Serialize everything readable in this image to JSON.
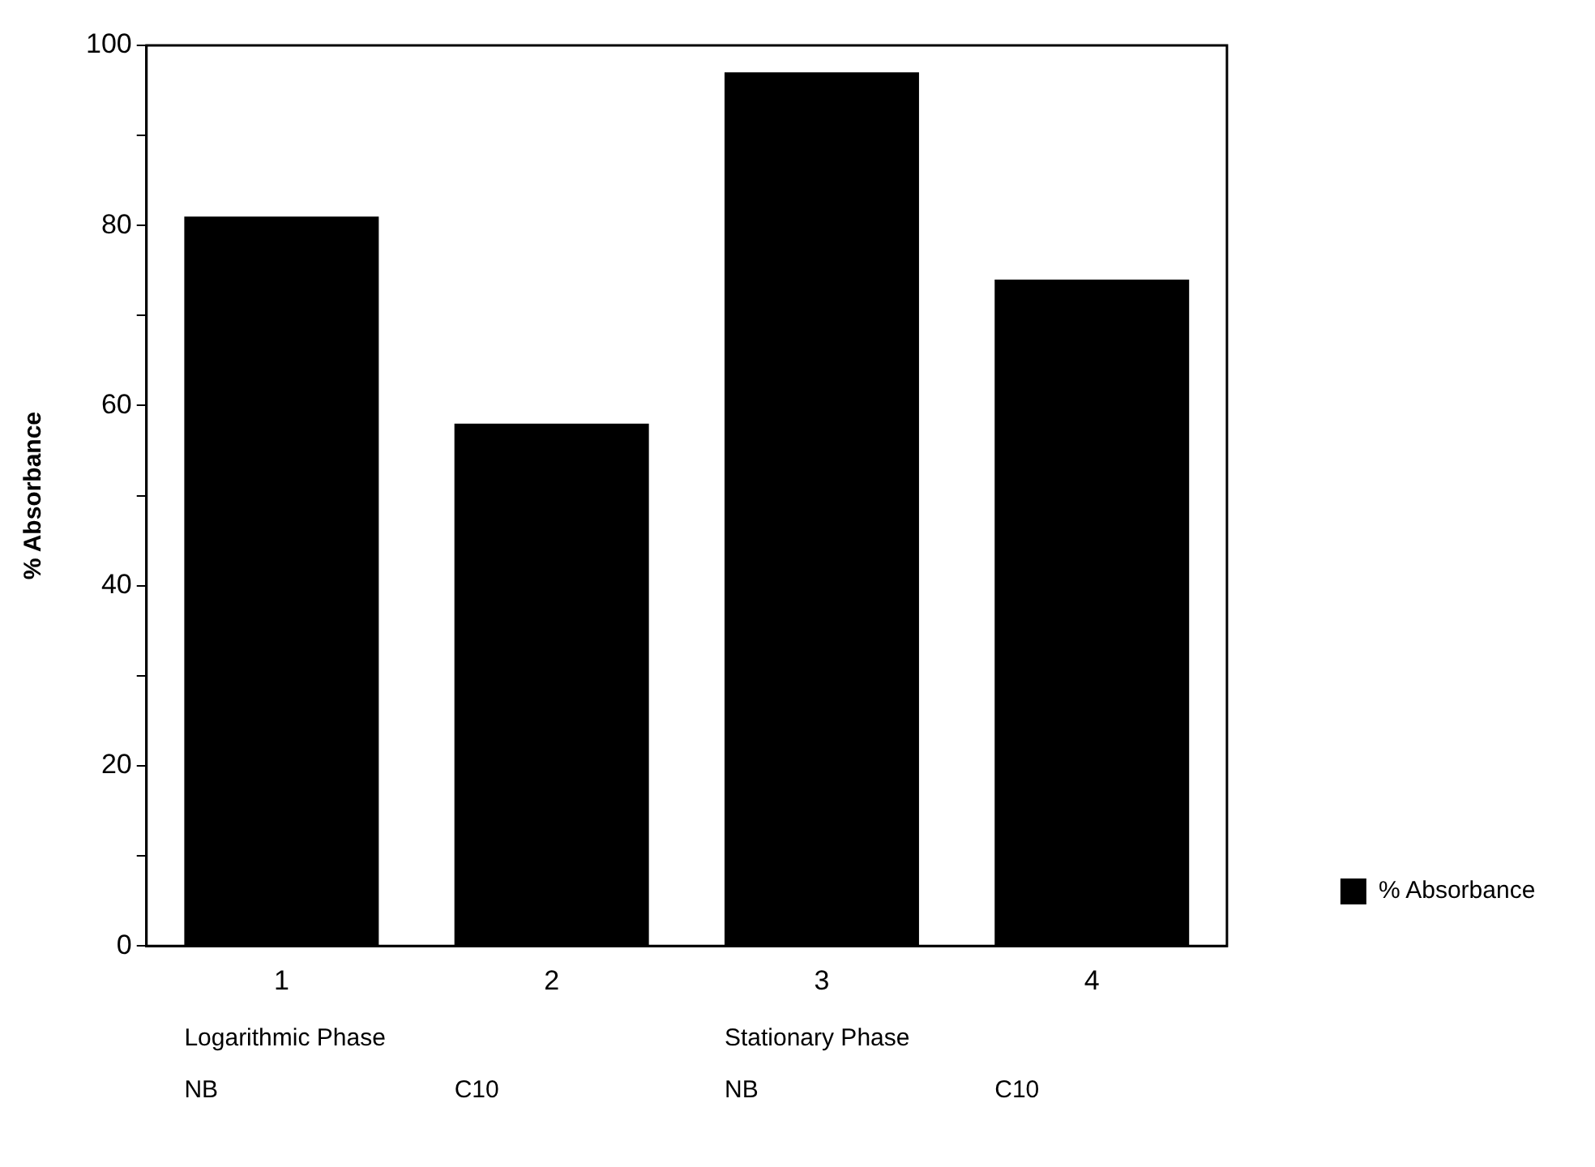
{
  "chart_data": {
    "type": "bar",
    "ylabel": "% Absorbance",
    "categories": [
      "1",
      "2",
      "3",
      "4"
    ],
    "series": [
      {
        "name": "% Absorbance",
        "color": "#000000",
        "values": [
          81,
          58,
          97,
          74
        ]
      }
    ],
    "ylim": [
      0,
      100
    ],
    "yticks": [
      0,
      {
        "value": 10,
        "label": null
      },
      20,
      {
        "value": 30,
        "label": null
      },
      40,
      {
        "value": 50,
        "label": null
      },
      60,
      {
        "value": 70,
        "label": null
      },
      80,
      {
        "value": 90,
        "label": null
      },
      100
    ],
    "grid": false,
    "legend": "right",
    "annotations": [
      "Logarithmic Phase",
      "Stationary Phase",
      "NB",
      "C10",
      "NB",
      "C10"
    ]
  }
}
